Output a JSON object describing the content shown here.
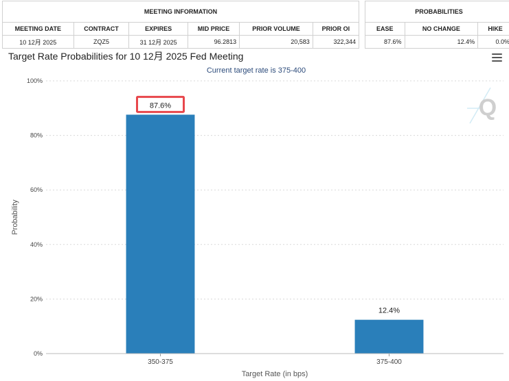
{
  "meeting_info": {
    "header": "MEETING INFORMATION",
    "columns": [
      "MEETING DATE",
      "CONTRACT",
      "EXPIRES",
      "MID PRICE",
      "PRIOR VOLUME",
      "PRIOR OI"
    ],
    "row": [
      "10 12月 2025",
      "ZQZ5",
      "31 12月 2025",
      "96.2813",
      "20,583",
      "322,344"
    ]
  },
  "probabilities": {
    "header": "PROBABILITIES",
    "columns": [
      "EASE",
      "NO CHANGE",
      "HIKE"
    ],
    "row": [
      "87.6%",
      "12.4%",
      "0.0%"
    ]
  },
  "menu_icon": "hamburger-menu-icon",
  "watermark_icon": "q-logo-icon",
  "colors": {
    "bar": "#2a7fba",
    "highlight": "#e8474c"
  },
  "chart_data": {
    "type": "bar",
    "title": "Target Rate Probabilities for 10 12月 2025 Fed Meeting",
    "subtitle": "Current target rate is 375-400",
    "xlabel": "Target Rate (in bps)",
    "ylabel": "Probability",
    "categories": [
      "350-375",
      "375-400"
    ],
    "values": [
      87.6,
      12.4
    ],
    "data_labels": [
      "87.6%",
      "12.4%"
    ],
    "highlighted_label": "87.6%",
    "ylim": [
      0,
      100
    ],
    "yticks": [
      0,
      20,
      40,
      60,
      80,
      100
    ],
    "ytick_labels": [
      "0%",
      "20%",
      "40%",
      "60%",
      "80%",
      "100%"
    ],
    "grid": true,
    "legend": "none"
  }
}
